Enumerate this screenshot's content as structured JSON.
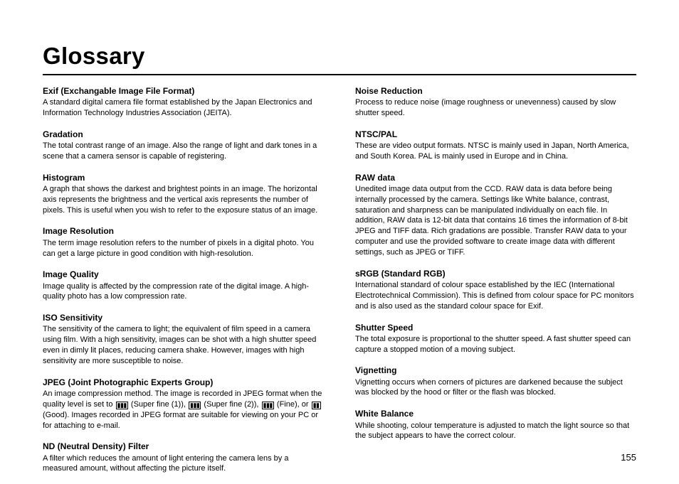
{
  "title": "Glossary",
  "page_number": "155",
  "left": [
    {
      "term": "Exif (Exchangable Image File Format)",
      "def": "A standard digital camera file format established by the Japan Electronics and Information Technology Industries Association (JEITA)."
    },
    {
      "term": "Gradation",
      "def": "The total contrast range of an image. Also the range of light and dark tones in a scene that a camera sensor is capable of registering."
    },
    {
      "term": "Histogram",
      "def": "A graph that shows the darkest and brightest points in an image. The horizontal axis represents the brightness and the vertical axis represents the number of pixels. This is useful when you wish to refer to the exposure status of an image."
    },
    {
      "term": "Image Resolution",
      "def": "The term image resolution refers to the number of pixels in a digital photo. You can get a large picture in good condition with high-resolution."
    },
    {
      "term": "Image Quality",
      "def": "Image quality is affected by the compression rate of the digital image. A high-quality photo has a low compression rate."
    },
    {
      "term": "ISO Sensitivity",
      "def": "The sensitivity of the camera to light; the equivalent of film speed in a camera using film. With a high sensitivity, images can be shot with a high shutter speed even in dimly lit places, reducing camera shake. However, images with high sensitivity are more susceptible to noise."
    },
    {
      "term": "JPEG (Joint Photographic Experts Group)",
      "def_pre": "An image compression method. The image is recorded in JPEG format when the quality level is set to ",
      "icon1": "▮▮▮",
      "sf1": " (Super fine (1)), ",
      "icon2": "▮▮▮",
      "sf2": " (Super fine (2)), ",
      "icon3": "▮▮▮",
      "fine": " (Fine), or ",
      "icon4": "▮▮",
      "good": " (Good). Images recorded in JPEG format are suitable for viewing on your PC or for attaching to e-mail.",
      "is_jpeg": true
    },
    {
      "term": "ND (Neutral Density) Filter",
      "def": "A filter which reduces the amount of light entering the camera lens by a measured amount, without affecting the picture itself."
    }
  ],
  "right": [
    {
      "term": "Noise Reduction",
      "def": "Process to reduce noise (image roughness or unevenness) caused by slow shutter speed."
    },
    {
      "term": "NTSC/PAL",
      "def": "These are video output formats. NTSC is mainly used in Japan, North America, and South Korea. PAL is mainly used in Europe and in China."
    },
    {
      "term": "RAW data",
      "def": "Unedited image data output from the CCD. RAW data is data before being internally processed by the camera. Settings like White balance, contrast, saturation and sharpness can be manipulated individually on each file. In addition, RAW data is 12-bit data that contains 16 times the information of 8-bit JPEG and TIFF data. Rich gradations are possible. Transfer RAW data to your computer and use the provided software to create image data with different settings, such as JPEG or TIFF."
    },
    {
      "term": "sRGB (Standard RGB)",
      "def": "International standard of colour space established by the IEC (International Electrotechnical Commission). This is defined from colour space for PC monitors and is also used as the standard colour space for Exif."
    },
    {
      "term": "Shutter Speed",
      "def": "The total exposure is proportional to the shutter speed. A fast shutter speed can capture a stopped motion of a moving subject."
    },
    {
      "term": "Vignetting",
      "def": "Vignetting occurs when corners of pictures are darkened because the subject was blocked by the hood or filter or the flash was blocked."
    },
    {
      "term": "White Balance",
      "def": "While shooting, colour temperature is adjusted to match the light source so that the subject appears to have the correct colour."
    }
  ]
}
